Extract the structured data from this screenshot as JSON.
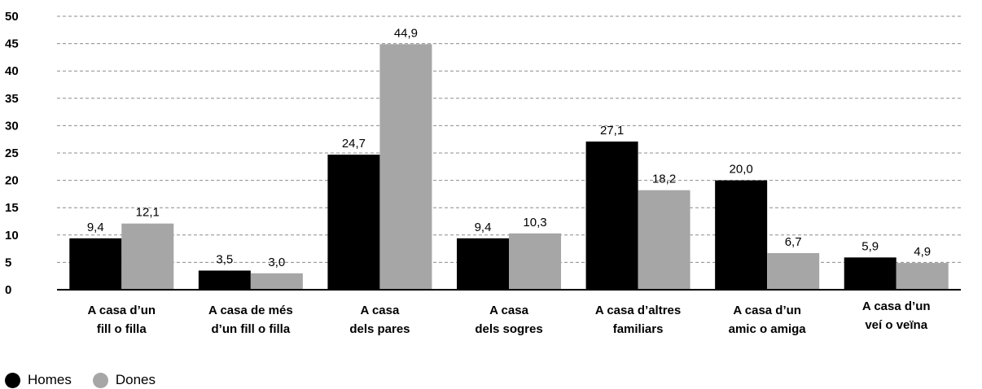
{
  "chart_data": {
    "type": "bar",
    "categories": [
      [
        "A casa d’un",
        "fill o filla"
      ],
      [
        "A casa de més",
        "d’un fill o filla"
      ],
      [
        "A casa",
        "dels pares"
      ],
      [
        "A casa",
        "dels sogres"
      ],
      [
        "A casa d’altres",
        "familiars"
      ],
      [
        "A casa d’un",
        "amic o amiga"
      ],
      [
        "A casa d’un",
        "veí o veïna"
      ]
    ],
    "series": [
      {
        "name": "Homes",
        "color": "#000000",
        "values": [
          9.4,
          3.5,
          24.7,
          9.4,
          27.1,
          20.0,
          5.9
        ],
        "labels": [
          "9,4",
          "3,5",
          "24,7",
          "9,4",
          "27,1",
          "20,0",
          "5,9"
        ]
      },
      {
        "name": "Dones",
        "color": "#a6a6a6",
        "values": [
          12.1,
          3.0,
          44.9,
          10.3,
          18.2,
          6.7,
          4.9
        ],
        "labels": [
          "12,1",
          "3,0",
          "44,9",
          "10,3",
          "18,2",
          "6,7",
          "4,9"
        ]
      }
    ],
    "yticks": [
      "0",
      "5",
      "10",
      "15",
      "20",
      "25",
      "30",
      "35",
      "40",
      "45",
      "50"
    ],
    "ylim": [
      0,
      50
    ],
    "grid": true,
    "legend": "bottom-left"
  }
}
